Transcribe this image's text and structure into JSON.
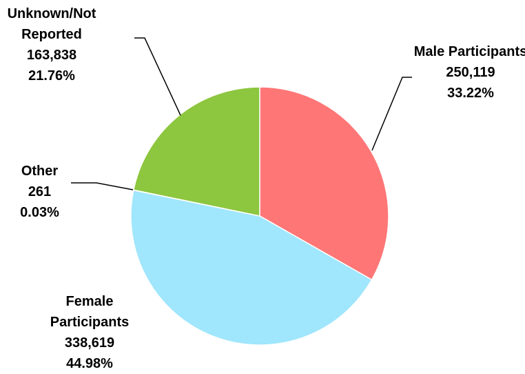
{
  "chart_data": {
    "type": "pie",
    "categories": [
      "Male Participants",
      "Female Participants",
      "Other",
      "Unknown/Not Reported"
    ],
    "values": [
      250119,
      338619,
      261,
      163838
    ],
    "value_labels": [
      "250,119",
      "338,619",
      "261",
      "163,838"
    ],
    "percent_labels": [
      "33.22%",
      "44.98%",
      "0.03%",
      "21.76%"
    ],
    "colors": [
      "#ff7676",
      "#a0e6fc",
      "#9dd8e8",
      "#8dc63f"
    ]
  }
}
